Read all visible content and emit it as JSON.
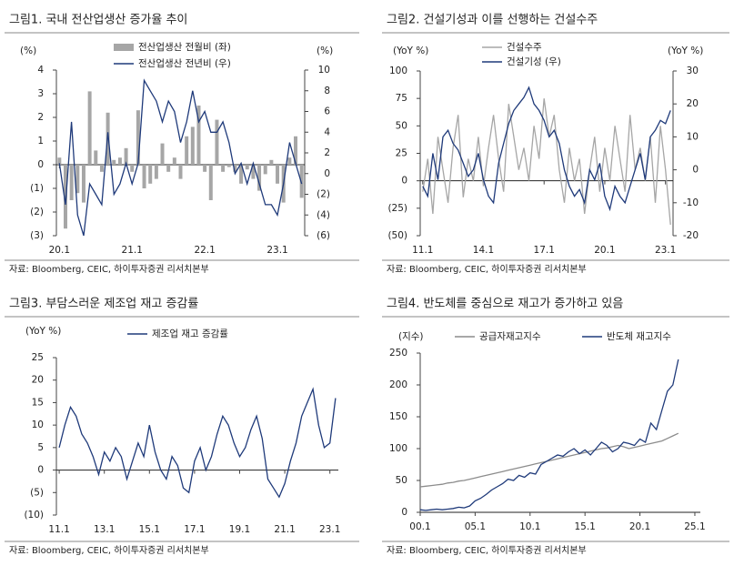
{
  "chart_data": [
    {
      "type": "combo",
      "title": "그림1.  국내 전산업생산 증가율 추이",
      "source": "자료: Bloomberg, CEIC, 하이투자증권 리서치본부",
      "y_label": "(%)",
      "y2_label": "(%)",
      "categories": [
        "20.1",
        null,
        null,
        null,
        null,
        null,
        null,
        null,
        null,
        null,
        null,
        null,
        "21.1",
        null,
        null,
        null,
        null,
        null,
        null,
        null,
        null,
        null,
        null,
        null,
        "22.1",
        null,
        null,
        null,
        null,
        null,
        null,
        null,
        null,
        null,
        null,
        null,
        "23.1",
        null,
        null,
        null,
        null
      ],
      "ylim": [
        -3,
        4
      ],
      "yticks": [
        {
          "value": -3,
          "label": "(3)"
        },
        {
          "value": -2,
          "label": "(2)"
        },
        {
          "value": -1,
          "label": "(1)"
        },
        0,
        1,
        2,
        3,
        4
      ],
      "y2lim": [
        -6,
        10
      ],
      "y2ticks": [
        {
          "value": -6,
          "label": "(6)"
        },
        {
          "value": -4,
          "label": "(4)"
        },
        {
          "value": -2,
          "label": "(2)"
        },
        0,
        2,
        4,
        6,
        8,
        10
      ],
      "series": [
        {
          "name": "전산업생산 전월비 (좌)",
          "kind": "bar",
          "color": "#a6a6a6",
          "values": [
            0.3,
            -2.7,
            -1.5,
            -1.2,
            -1.6,
            3.1,
            0.6,
            -0.3,
            2.2,
            0.2,
            0.3,
            0.7,
            -0.3,
            2.3,
            -1.0,
            -0.8,
            -0.6,
            0.9,
            -0.3,
            0.3,
            -0.6,
            1.2,
            1.6,
            2.5,
            -0.3,
            -1.5,
            1.9,
            -0.3,
            -0.1,
            -0.3,
            -0.8,
            -0.2,
            -0.6,
            -1.1,
            -0.4,
            0.2,
            -0.8,
            -1.6,
            0.3,
            1.2,
            -1.4
          ]
        },
        {
          "name": "전산업생산 전년비 (우)",
          "kind": "line",
          "axis": "y2",
          "color": "#1f3a7a",
          "values": [
            1,
            -3,
            5,
            -4,
            -6,
            -1,
            -2,
            -3,
            4,
            -2,
            -1,
            1,
            -1,
            1,
            9,
            8,
            7,
            5,
            7,
            6,
            3,
            5,
            8,
            5,
            6,
            4,
            4,
            5,
            3,
            0,
            1,
            -1,
            1,
            -1,
            -3,
            -3,
            -4,
            -1,
            3,
            1,
            -1
          ]
        }
      ]
    },
    {
      "type": "line",
      "title": "그림2.  건설기성과 이를 선행하는 건설수주",
      "source": "자료: Bloomberg, CEIC, 하이투자증권 리서치본부",
      "y_label": "(YoY %)",
      "y2_label": "(YoY %)",
      "categories": [
        "11.1",
        null,
        null,
        null,
        null,
        null,
        null,
        null,
        null,
        null,
        null,
        null,
        "14.1",
        null,
        null,
        null,
        null,
        null,
        null,
        null,
        null,
        null,
        null,
        null,
        "17.1",
        null,
        null,
        null,
        null,
        null,
        null,
        null,
        null,
        null,
        null,
        null,
        "20.1",
        null,
        null,
        null,
        null,
        null,
        null,
        null,
        null,
        null,
        null,
        null,
        "23.1",
        null
      ],
      "ylim": [
        -50,
        100
      ],
      "yticks": [
        {
          "value": -50,
          "label": "(50)"
        },
        {
          "value": -25,
          "label": "(25)"
        },
        0,
        25,
        50,
        75,
        100
      ],
      "y2lim": [
        -20,
        30
      ],
      "y2ticks": [
        -20,
        -10,
        0,
        10,
        20,
        30
      ],
      "series": [
        {
          "name": "건설수주",
          "kind": "line",
          "color": "#a6a6a6",
          "values": [
            -10,
            20,
            -30,
            40,
            10,
            -20,
            30,
            60,
            -15,
            20,
            0,
            40,
            -5,
            30,
            60,
            20,
            -10,
            70,
            40,
            10,
            30,
            0,
            50,
            20,
            75,
            40,
            60,
            10,
            -20,
            30,
            0,
            20,
            -30,
            10,
            40,
            -10,
            30,
            0,
            50,
            20,
            -10,
            60,
            10,
            30,
            0,
            40,
            -20,
            50,
            10,
            -40
          ]
        },
        {
          "name": "건설기성 (우)",
          "kind": "line",
          "axis": "y2",
          "color": "#1f3a7a",
          "values": [
            -5,
            -8,
            5,
            -3,
            10,
            12,
            8,
            6,
            2,
            -2,
            0,
            5,
            -3,
            -8,
            -10,
            2,
            8,
            14,
            18,
            20,
            22,
            25,
            20,
            18,
            15,
            10,
            12,
            8,
            0,
            -5,
            -8,
            -6,
            -10,
            0,
            -3,
            2,
            -8,
            -12,
            -5,
            -8,
            -10,
            -5,
            0,
            5,
            -3,
            10,
            12,
            15,
            14,
            18
          ]
        }
      ]
    },
    {
      "type": "line",
      "title": "그림3.  부담스러운 제조업 재고 증감률",
      "source": "자료: Bloomberg, CEIC, 하이투자증권 리서치본부",
      "y_label": "(YoY %)",
      "categories": [
        "11.1",
        null,
        null,
        null,
        null,
        null,
        null,
        null,
        "13.1",
        null,
        null,
        null,
        null,
        null,
        null,
        null,
        "15.1",
        null,
        null,
        null,
        null,
        null,
        null,
        null,
        "17.1",
        null,
        null,
        null,
        null,
        null,
        null,
        null,
        "19.1",
        null,
        null,
        null,
        null,
        null,
        null,
        null,
        "21.1",
        null,
        null,
        null,
        null,
        null,
        null,
        null,
        "23.1",
        null
      ],
      "ylim": [
        -10,
        25
      ],
      "yticks": [
        {
          "value": -10,
          "label": "(10)"
        },
        {
          "value": -5,
          "label": "(5)"
        },
        0,
        5,
        10,
        15,
        20,
        25
      ],
      "series": [
        {
          "name": "제조업 재고 증감률",
          "kind": "line",
          "color": "#1f3a7a",
          "values": [
            5,
            10,
            14,
            12,
            8,
            6,
            3,
            -1,
            4,
            2,
            5,
            3,
            -2,
            2,
            6,
            3,
            10,
            4,
            0,
            -2,
            3,
            1,
            -4,
            -5,
            2,
            5,
            0,
            3,
            8,
            12,
            10,
            6,
            3,
            5,
            9,
            12,
            7,
            -2,
            -4,
            -6,
            -3,
            2,
            6,
            12,
            15,
            18,
            10,
            5,
            6,
            16
          ]
        }
      ]
    },
    {
      "type": "line",
      "title": "그림4.  반도체를 중심으로 재고가 증가하고 있음",
      "source": "자료: Bloomberg, CEIC, 하이투자증권 리서치본부",
      "y_label": "(지수)",
      "x": [
        2000,
        2000.5,
        2001,
        2001.5,
        2002,
        2002.5,
        2003,
        2003.5,
        2004,
        2004.5,
        2005,
        2005.5,
        2006,
        2006.5,
        2007,
        2007.5,
        2008,
        2008.5,
        2009,
        2009.5,
        2010,
        2010.5,
        2011,
        2011.5,
        2012,
        2012.5,
        2013,
        2013.5,
        2014,
        2014.5,
        2015,
        2015.5,
        2016,
        2016.5,
        2017,
        2017.5,
        2018,
        2018.5,
        2019,
        2019.5,
        2020,
        2020.5,
        2021,
        2021.5,
        2022,
        2022.5,
        2023,
        2023.5
      ],
      "xlim": [
        2000,
        2025.5
      ],
      "xticks": [
        {
          "value": 2000,
          "label": "00.1"
        },
        {
          "value": 2005,
          "label": "05.1"
        },
        {
          "value": 2010,
          "label": "10.1"
        },
        {
          "value": 2015,
          "label": "15.1"
        },
        {
          "value": 2020,
          "label": "20.1"
        },
        {
          "value": 2025,
          "label": "25.1"
        }
      ],
      "ylim": [
        0,
        250
      ],
      "yticks": [
        0,
        50,
        100,
        150,
        200,
        250
      ],
      "series": [
        {
          "name": "공급자재고지수",
          "kind": "line",
          "color": "#8c8c8c",
          "values": [
            40,
            41,
            42,
            43,
            44,
            46,
            47,
            49,
            50,
            52,
            54,
            56,
            58,
            60,
            62,
            64,
            66,
            68,
            70,
            72,
            74,
            76,
            78,
            80,
            82,
            84,
            86,
            88,
            90,
            92,
            94,
            96,
            98,
            100,
            101,
            103,
            105,
            103,
            100,
            102,
            104,
            106,
            108,
            110,
            112,
            116,
            120,
            124
          ]
        },
        {
          "name": "반도체 재고지수",
          "kind": "line",
          "color": "#1f3a7a",
          "values": [
            4,
            3,
            4,
            5,
            4,
            5,
            6,
            8,
            7,
            10,
            18,
            22,
            28,
            35,
            40,
            45,
            52,
            50,
            58,
            55,
            62,
            60,
            75,
            80,
            85,
            90,
            88,
            95,
            100,
            92,
            98,
            90,
            100,
            110,
            105,
            95,
            100,
            110,
            108,
            105,
            115,
            110,
            140,
            130,
            160,
            190,
            200,
            240
          ]
        }
      ]
    }
  ]
}
